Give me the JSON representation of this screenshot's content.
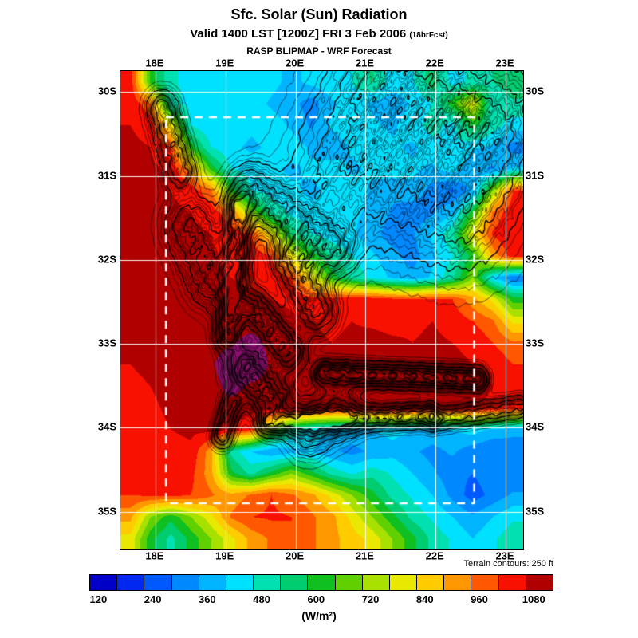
{
  "header": {
    "title": "Sfc. Solar (Sun) Radiation",
    "valid_main": "Valid 1400 LST [1200Z] FRI 3 Feb 2006 ",
    "valid_fcst": "(18hrFcst)",
    "model_line": "RASP BLIPMAP - WRF Forecast"
  },
  "map": {
    "lon_ticks": [
      "18E",
      "19E",
      "20E",
      "21E",
      "22E",
      "23E"
    ],
    "lon_values": [
      18,
      19,
      20,
      21,
      22,
      23
    ],
    "lat_ticks": [
      "30S",
      "31S",
      "32S",
      "33S",
      "34S",
      "35S"
    ],
    "lat_values": [
      30,
      31,
      32,
      33,
      34,
      35
    ],
    "extent": {
      "lon_min": 17.5,
      "lon_max": 23.25,
      "lat_min": 29.75,
      "lat_max": 35.45
    },
    "inner_domain": {
      "lon_min": 18.15,
      "lon_max": 22.55,
      "lat_min": 30.3,
      "lat_max": 34.9
    },
    "grid_color": "#ffffff",
    "terrain_note": "Terrain contours: 250 ft"
  },
  "colorbar": {
    "tick_labels": [
      "120",
      "240",
      "360",
      "480",
      "600",
      "720",
      "840",
      "960",
      "1080"
    ],
    "tick_values": [
      120,
      240,
      360,
      480,
      600,
      720,
      840,
      960,
      1080
    ],
    "scale_min": 100,
    "scale_step": 60,
    "colors": [
      "#0000c8",
      "#0028f0",
      "#0058ff",
      "#0088ff",
      "#00b4ff",
      "#00e0ff",
      "#00e0b0",
      "#00cc70",
      "#10c020",
      "#60d000",
      "#a8e000",
      "#e8e800",
      "#ffcc00",
      "#ff9800",
      "#ff5800",
      "#f81000",
      "#b00000"
    ],
    "units_label": "(W/m²)"
  },
  "chart_data": {
    "type": "heatmap",
    "title": "Sfc. Solar (Sun) Radiation",
    "units": "W/m²",
    "value_ticks": [
      120,
      240,
      360,
      480,
      600,
      720,
      840,
      960,
      1080
    ],
    "lon_range": [
      17.5,
      23.25
    ],
    "lat_range": [
      29.75,
      35.45
    ],
    "grid_cols": 20,
    "grid_rows": 22,
    "overflow_color": "#8c1070",
    "values": [
      [
        1040,
        620,
        470,
        440,
        420,
        430,
        450,
        420,
        380,
        420,
        440,
        460,
        530,
        430,
        450,
        560,
        430,
        480,
        520,
        560
      ],
      [
        1050,
        950,
        500,
        430,
        400,
        410,
        430,
        390,
        360,
        310,
        390,
        430,
        390,
        360,
        410,
        460,
        620,
        790,
        460,
        510
      ],
      [
        1060,
        1040,
        800,
        460,
        410,
        440,
        410,
        430,
        390,
        330,
        410,
        440,
        410,
        390,
        430,
        490,
        430,
        610,
        490,
        430
      ],
      [
        1070,
        1060,
        1000,
        620,
        460,
        410,
        390,
        410,
        430,
        390,
        360,
        410,
        430,
        410,
        390,
        430,
        460,
        410,
        390,
        310
      ],
      [
        1080,
        1070,
        1050,
        900,
        620,
        460,
        430,
        410,
        390,
        410,
        430,
        390,
        410,
        430,
        410,
        390,
        430,
        360,
        330,
        410
      ],
      [
        1090,
        1080,
        1060,
        1040,
        950,
        620,
        460,
        430,
        410,
        390,
        410,
        430,
        390,
        360,
        390,
        310,
        270,
        360,
        700,
        1000
      ],
      [
        1090,
        1085,
        1070,
        1060,
        1040,
        950,
        700,
        510,
        440,
        410,
        430,
        410,
        390,
        330,
        290,
        330,
        390,
        610,
        950,
        1050
      ],
      [
        1095,
        1090,
        1080,
        1070,
        1060,
        1040,
        1000,
        800,
        560,
        460,
        430,
        410,
        360,
        310,
        330,
        410,
        510,
        800,
        1010,
        1060
      ],
      [
        1095,
        1090,
        1085,
        1075,
        1065,
        1050,
        1040,
        1000,
        800,
        610,
        510,
        460,
        410,
        360,
        310,
        390,
        460,
        610,
        900,
        1040
      ],
      [
        1095,
        1090,
        1085,
        1080,
        1070,
        1060,
        1050,
        1040,
        1000,
        800,
        610,
        510,
        440,
        390,
        360,
        410,
        510,
        700,
        410,
        280
      ],
      [
        1090,
        1095,
        1090,
        1085,
        1080,
        1075,
        1070,
        1060,
        1050,
        1020,
        1040,
        1050,
        1040,
        1020,
        1000,
        1020,
        1000,
        900,
        800,
        610
      ],
      [
        1080,
        1090,
        1100,
        1095,
        1090,
        1090,
        1085,
        1080,
        1070,
        1060,
        1050,
        1060,
        1050,
        1040,
        1050,
        1060,
        1040,
        1000,
        950,
        800
      ],
      [
        1070,
        1080,
        1090,
        1100,
        1105,
        1110,
        1150,
        1100,
        1080,
        1070,
        1060,
        1070,
        1080,
        1070,
        1060,
        1070,
        1060,
        1050,
        1000,
        950
      ],
      [
        1060,
        1070,
        1090,
        1100,
        1110,
        1160,
        1170,
        1110,
        1090,
        1080,
        1070,
        1080,
        1090,
        1080,
        1070,
        1080,
        1070,
        1060,
        1050,
        1000
      ],
      [
        1050,
        1060,
        1080,
        1090,
        1100,
        1140,
        1110,
        1100,
        1090,
        1080,
        1090,
        1080,
        1090,
        1080,
        1090,
        1080,
        1070,
        1080,
        1060,
        1040
      ],
      [
        1040,
        1050,
        1070,
        1080,
        1090,
        1100,
        1090,
        1080,
        1090,
        1080,
        1070,
        1080,
        1070,
        1080,
        1070,
        1060,
        1070,
        1060,
        1050,
        1030
      ],
      [
        1030,
        1040,
        1060,
        1070,
        1080,
        1060,
        1000,
        700,
        500,
        430,
        400,
        380,
        400,
        420,
        400,
        380,
        400,
        430,
        380,
        350
      ],
      [
        1020,
        1030,
        1040,
        1050,
        900,
        500,
        400,
        350,
        380,
        400,
        350,
        320,
        350,
        380,
        350,
        320,
        350,
        300,
        280,
        320
      ],
      [
        1010,
        1020,
        1030,
        1020,
        900,
        600,
        500,
        600,
        700,
        600,
        500,
        450,
        500,
        450,
        400,
        350,
        300,
        280,
        320,
        280
      ],
      [
        1000,
        1010,
        1020,
        1000,
        950,
        900,
        950,
        1000,
        950,
        900,
        800,
        700,
        600,
        500,
        450,
        400,
        320,
        250,
        300,
        350
      ],
      [
        900,
        700,
        600,
        700,
        800,
        950,
        1000,
        1010,
        1000,
        950,
        900,
        800,
        700,
        600,
        500,
        450,
        400,
        350,
        400,
        450
      ],
      [
        800,
        600,
        500,
        600,
        700,
        800,
        900,
        950,
        1000,
        950,
        900,
        850,
        800,
        700,
        600,
        500,
        450,
        400,
        450,
        500
      ]
    ]
  }
}
